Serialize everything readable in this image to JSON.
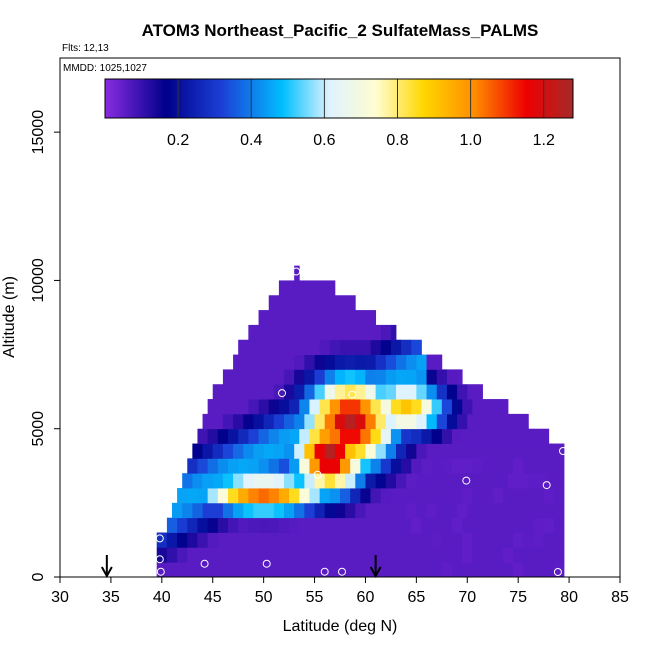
{
  "chart_data": {
    "type": "heatmap",
    "title": "ATOM3 Northeast_Pacific_2 SulfateMass_PALMS",
    "flights_note": "Flts: 12,13",
    "dates_note": "MMDD: 1025,1027",
    "xlabel": "Latitude (deg N)",
    "ylabel": "Altitude (m)",
    "xlim": [
      30,
      85
    ],
    "ylim": [
      0,
      17500
    ],
    "x_ticks": [
      "30",
      "35",
      "40",
      "45",
      "50",
      "55",
      "60",
      "65",
      "70",
      "75",
      "80",
      "85"
    ],
    "y_ticks": [
      "0",
      "5000",
      "10000",
      "15000"
    ],
    "colorbar": {
      "range": [
        0,
        1.28
      ],
      "ticks": [
        "0.2",
        "0.4",
        "0.6",
        "0.8",
        "1.0",
        "1.2"
      ],
      "tick_values": [
        0.2,
        0.4,
        0.6,
        0.8,
        1.0,
        1.2
      ]
    },
    "grid": {
      "lat_start": 39.5,
      "lat_step": 1,
      "lat_count": 40,
      "alt_step": 500,
      "alt_count": 21,
      "lower_left_latitude": 39.5,
      "rows": [
        {
          "alt": 250,
          "lat_min": 39.5,
          "lat_max": 79.5
        },
        {
          "alt": 750,
          "lat_min": 39.5,
          "lat_max": 79.5
        },
        {
          "alt": 1250,
          "lat_min": 39.5,
          "lat_max": 79.5
        },
        {
          "alt": 1750,
          "lat_min": 40.5,
          "lat_max": 79.5
        },
        {
          "alt": 2250,
          "lat_min": 41,
          "lat_max": 79.5
        },
        {
          "alt": 2750,
          "lat_min": 41.5,
          "lat_max": 79.5
        },
        {
          "alt": 3250,
          "lat_min": 42,
          "lat_max": 79.5
        },
        {
          "alt": 3750,
          "lat_min": 42.5,
          "lat_max": 79.5
        },
        {
          "alt": 4250,
          "lat_min": 43,
          "lat_max": 79.5
        },
        {
          "alt": 4750,
          "lat_min": 43.5,
          "lat_max": 78
        },
        {
          "alt": 5250,
          "lat_min": 44,
          "lat_max": 76
        },
        {
          "alt": 5750,
          "lat_min": 44.5,
          "lat_max": 74
        },
        {
          "alt": 6250,
          "lat_min": 45,
          "lat_max": 71.5
        },
        {
          "alt": 6750,
          "lat_min": 46,
          "lat_max": 69.5
        },
        {
          "alt": 7250,
          "lat_min": 47,
          "lat_max": 67.5
        },
        {
          "alt": 7750,
          "lat_min": 47.5,
          "lat_max": 65.5
        },
        {
          "alt": 8250,
          "lat_min": 48.5,
          "lat_max": 63
        },
        {
          "alt": 8750,
          "lat_min": 49.5,
          "lat_max": 61
        },
        {
          "alt": 9250,
          "lat_min": 50.5,
          "lat_max": 59
        },
        {
          "alt": 9750,
          "lat_min": 51.5,
          "lat_max": 57
        },
        {
          "alt": 10250,
          "lat_min": 53,
          "lat_max": 53.5
        }
      ]
    },
    "plume_features": [
      {
        "name": "upper_core",
        "lat": 58.5,
        "alt": 5200,
        "width_lat": 4.5,
        "width_alt": 1600,
        "peak": 1.25
      },
      {
        "name": "mid_core",
        "lat": 56.5,
        "alt": 4100,
        "width_lat": 3.5,
        "width_alt": 1300,
        "peak": 1.27
      },
      {
        "name": "lower_band",
        "lat": 50.0,
        "alt": 2800,
        "width_lat": 6.5,
        "width_alt": 650,
        "peak": 1.05
      },
      {
        "name": "east_tongue",
        "lat": 64.0,
        "alt": 5700,
        "width_lat": 4.0,
        "width_alt": 900,
        "peak": 0.9
      }
    ],
    "sample_points": [
      {
        "lat": 39.8,
        "alt": 1300
      },
      {
        "lat": 39.8,
        "alt": 600
      },
      {
        "lat": 39.9,
        "alt": 180
      },
      {
        "lat": 44.2,
        "alt": 450
      },
      {
        "lat": 50.3,
        "alt": 450
      },
      {
        "lat": 51.8,
        "alt": 6200
      },
      {
        "lat": 53.2,
        "alt": 10300
      },
      {
        "lat": 55.3,
        "alt": 3450
      },
      {
        "lat": 56.0,
        "alt": 180
      },
      {
        "lat": 57.7,
        "alt": 180
      },
      {
        "lat": 58.7,
        "alt": 6150
      },
      {
        "lat": 69.9,
        "alt": 3250
      },
      {
        "lat": 77.8,
        "alt": 3100
      },
      {
        "lat": 78.9,
        "alt": 170
      },
      {
        "lat": 79.4,
        "alt": 4250
      }
    ],
    "arrows": [
      {
        "lat": 34.6
      },
      {
        "lat": 61.0
      }
    ]
  }
}
